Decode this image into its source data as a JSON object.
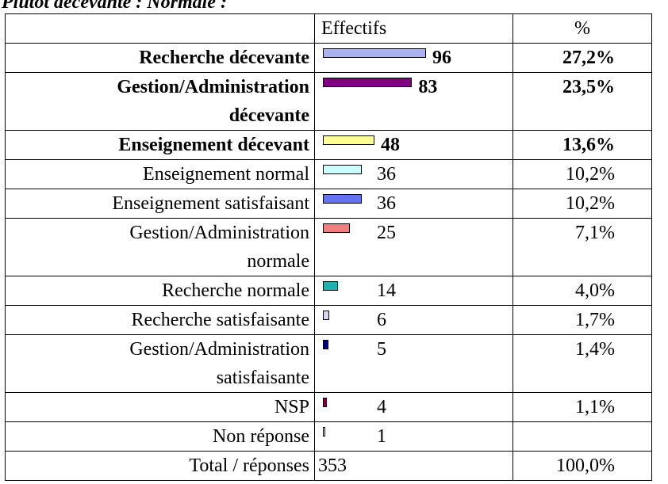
{
  "title": "Plutôt décevante : Normale :",
  "table": {
    "header": [
      "Effectifs",
      "%"
    ],
    "rows": [
      {
        "label": [
          "Recherche décevante"
        ],
        "count": 96,
        "percent": "27,2%",
        "bold": true,
        "color": "#aab2f2"
      },
      {
        "label": [
          "Gestion/Administration",
          "décevante"
        ],
        "count": 83,
        "percent": "23,5%",
        "bold": true,
        "color": "#800080"
      },
      {
        "label": [
          "Enseignement décevant"
        ],
        "count": 48,
        "percent": "13,6%",
        "bold": true,
        "color": "#ffff99"
      },
      {
        "label": [
          "Enseignement normal"
        ],
        "count": 36,
        "percent": "10,2%",
        "bold": false,
        "color": "#ccffff"
      },
      {
        "label": [
          "Enseignement satisfaisant"
        ],
        "count": 36,
        "percent": "10,2%",
        "bold": false,
        "color": "#6272f0"
      },
      {
        "label": [
          "Gestion/Administration",
          "normale"
        ],
        "count": 25,
        "percent": "7,1%",
        "bold": false,
        "color": "#f08080"
      },
      {
        "label": [
          "Recherche normale"
        ],
        "count": 14,
        "percent": "4,0%",
        "bold": false,
        "color": "#20b0b0"
      },
      {
        "label": [
          "Recherche satisfaisante"
        ],
        "count": 6,
        "percent": "1,7%",
        "bold": false,
        "color": "#d4d4f4"
      },
      {
        "label": [
          "Gestion/Administration",
          "satisfaisante"
        ],
        "count": 5,
        "percent": "1,4%",
        "bold": false,
        "color": "#000080"
      },
      {
        "label": [
          "NSP"
        ],
        "count": 4,
        "percent": "1,1%",
        "bold": false,
        "color": "#800040"
      },
      {
        "label": [
          "Non réponse"
        ],
        "count": 1,
        "percent": null,
        "bold": false,
        "color": "#ffffff"
      }
    ],
    "total": {
      "label": "Total / réponses",
      "count": 353,
      "percent": "100,0%"
    }
  }
}
